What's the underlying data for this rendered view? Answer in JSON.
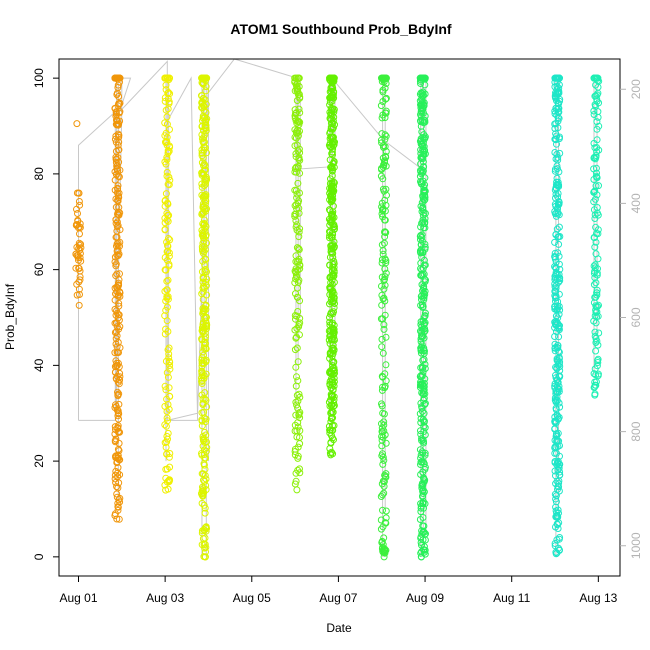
{
  "chart_data": {
    "type": "scatter",
    "title": "ATOM1 Southbound Prob_BdyInf",
    "xlabel": "Date",
    "ylabel": "Prob_BdyInf",
    "x_ticks": [
      "Aug 01",
      "Aug 03",
      "Aug 05",
      "Aug 07",
      "Aug 09",
      "Aug 11",
      "Aug 13"
    ],
    "x_tick_days": [
      1,
      3,
      5,
      7,
      9,
      11,
      13
    ],
    "xlim_days": [
      0.55,
      13.5
    ],
    "ylim": [
      -4,
      104
    ],
    "y_ticks": [
      0,
      20,
      40,
      60,
      80,
      100
    ],
    "y2_ticks": [
      200,
      400,
      600,
      800,
      1000
    ],
    "y2lim": [
      1053,
      147
    ],
    "marker": "open-circle",
    "line_color": "#c8c8c8",
    "clusters": [
      {
        "day": 1.0,
        "color": "#f0960a",
        "ymin": 52,
        "ymax": 76,
        "extra": [
          90.5
        ],
        "n": 45
      },
      {
        "day": 1.9,
        "color": "#f0960a",
        "ymin": 7,
        "ymax": 100,
        "extra": [],
        "n": 260
      },
      {
        "day": 3.05,
        "color": "#f0f000",
        "ymin": 12,
        "ymax": 100,
        "extra": [],
        "n": 150
      },
      {
        "day": 3.9,
        "color": "#dcf500",
        "ymin": 0,
        "ymax": 100,
        "extra": [
          0,
          0,
          0
        ],
        "n": 320
      },
      {
        "day": 6.05,
        "color": "#8cf00a",
        "ymin": 13,
        "ymax": 100,
        "extra": [],
        "n": 170
      },
      {
        "day": 6.85,
        "color": "#64f000",
        "ymin": 21,
        "ymax": 100,
        "extra": [],
        "n": 360
      },
      {
        "day": 8.05,
        "color": "#3cf03c",
        "ymin": 0,
        "ymax": 100,
        "extra": [
          0,
          1,
          2,
          3
        ],
        "n": 170
      },
      {
        "day": 8.95,
        "color": "#28f05a",
        "ymin": 0,
        "ymax": 100,
        "extra": [
          0,
          1,
          0
        ],
        "n": 360
      },
      {
        "day": 12.05,
        "color": "#1ee6c8",
        "ymin": 0,
        "ymax": 100,
        "extra": [],
        "n": 330
      },
      {
        "day": 12.95,
        "color": "#1ef0b4",
        "ymin": 33,
        "ymax": 100,
        "extra": [],
        "n": 130
      }
    ],
    "line_path": [
      [
        1.0,
        28.5
      ],
      [
        1.0,
        86
      ],
      [
        1.85,
        93
      ],
      [
        1.85,
        28.5
      ],
      [
        1.0,
        28.5
      ],
      [
        1.85,
        28.5
      ],
      [
        2.0,
        93
      ],
      [
        2.0,
        100
      ],
      [
        2.2,
        100
      ],
      [
        1.95,
        93
      ],
      [
        3.05,
        103.5
      ],
      [
        3.05,
        28.5
      ],
      [
        3.05,
        91
      ],
      [
        3.6,
        100
      ],
      [
        3.75,
        28.5
      ],
      [
        3.05,
        28.5
      ],
      [
        3.75,
        30
      ],
      [
        4.0,
        100
      ],
      [
        4.0,
        97
      ],
      [
        4.6,
        104
      ],
      [
        6.05,
        100
      ],
      [
        6.05,
        81
      ],
      [
        6.85,
        81.5
      ],
      [
        6.85,
        100
      ],
      [
        8.05,
        87
      ],
      [
        8.85,
        81.5
      ],
      [
        8.95,
        100
      ]
    ],
    "vertical_spans": [
      [
        1.88,
        30,
        100
      ],
      [
        1.92,
        12,
        100
      ],
      [
        3.02,
        20,
        100
      ],
      [
        3.08,
        30,
        100
      ],
      [
        3.85,
        0,
        100
      ],
      [
        3.9,
        30,
        100
      ],
      [
        3.95,
        0,
        100
      ],
      [
        4.0,
        20,
        100
      ],
      [
        6.02,
        30,
        100
      ],
      [
        6.07,
        40,
        100
      ],
      [
        6.12,
        50,
        100
      ],
      [
        6.8,
        30,
        100
      ],
      [
        6.86,
        25,
        100
      ],
      [
        6.92,
        35,
        100
      ],
      [
        8.02,
        0,
        100
      ],
      [
        8.08,
        10,
        100
      ],
      [
        8.9,
        0,
        100
      ],
      [
        8.96,
        0,
        100
      ],
      [
        9.02,
        5,
        100
      ],
      [
        12.02,
        0,
        100
      ],
      [
        12.08,
        10,
        100
      ],
      [
        12.9,
        38,
        100
      ],
      [
        12.97,
        45,
        100
      ]
    ]
  }
}
